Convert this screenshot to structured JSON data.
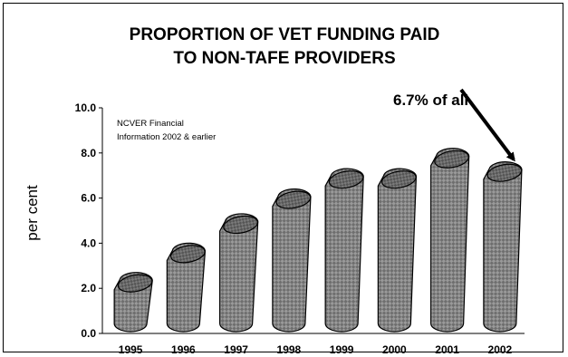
{
  "chart_data": {
    "type": "bar",
    "title_lines": [
      "PROPORTION OF VET FUNDING PAID",
      "TO NON-TAFE PROVIDERS"
    ],
    "ylabel": "per cent",
    "xlabel": "",
    "categories": [
      "1995",
      "1996",
      "1997",
      "1998",
      "1999",
      "2000",
      "2001",
      "2002"
    ],
    "values": [
      2.3,
      3.6,
      4.9,
      6.0,
      6.9,
      6.9,
      7.8,
      7.2
    ],
    "ylim": [
      0,
      10
    ],
    "y_ticks": [
      "0.0",
      "2.0",
      "4.0",
      "6.0",
      "8.0",
      "10.0"
    ],
    "grid": false,
    "note_lines": [
      "NCVER Financial",
      "Information 2002 & earlier"
    ],
    "annotation": "6.7% of all",
    "bar_fill": "#8a8a8a",
    "bar_top_fill": "#6a6a6a"
  }
}
